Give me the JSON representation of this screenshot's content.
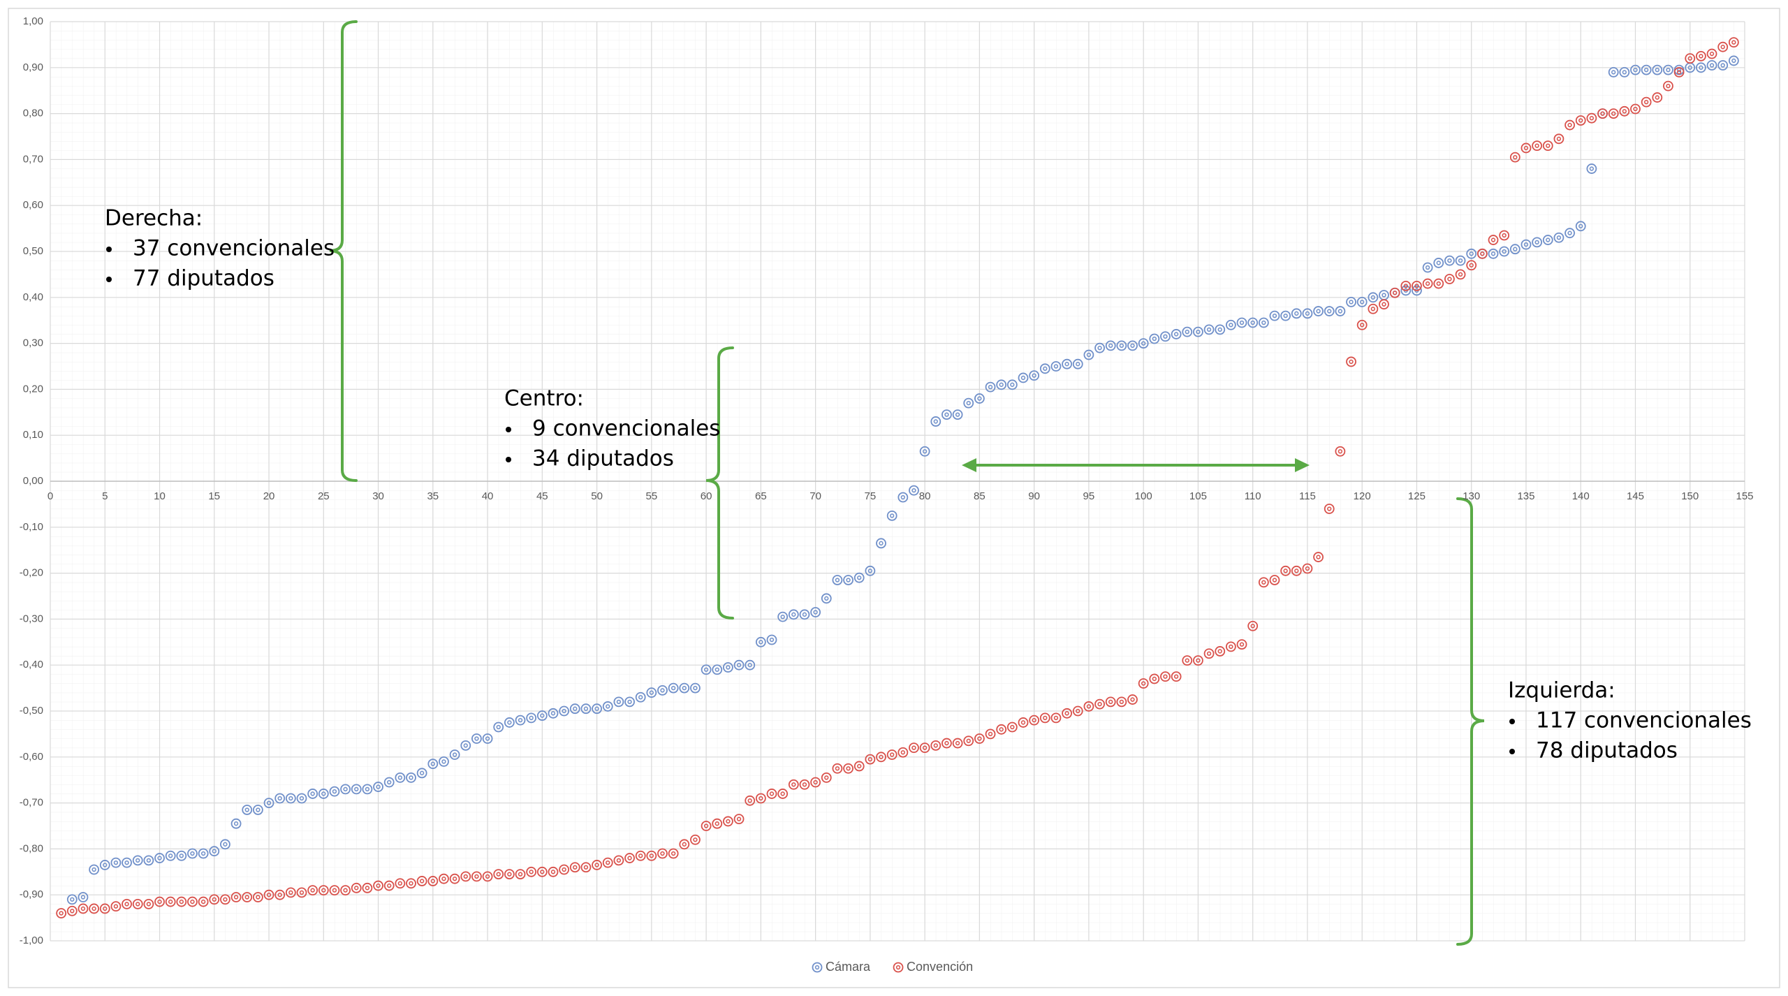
{
  "chart_data": {
    "type": "scatter",
    "xlim": [
      0,
      155
    ],
    "ylim": [
      -1,
      1
    ],
    "xticks": [
      0,
      5,
      10,
      15,
      20,
      25,
      30,
      35,
      40,
      45,
      50,
      55,
      60,
      65,
      70,
      75,
      80,
      85,
      90,
      95,
      100,
      105,
      110,
      115,
      120,
      125,
      130,
      135,
      140,
      145,
      150,
      155
    ],
    "yticks": [
      {
        "value": 1,
        "label": "1,00"
      },
      {
        "value": 0.9,
        "label": "0,90"
      },
      {
        "value": 0.8,
        "label": "0,80"
      },
      {
        "value": 0.7,
        "label": "0,70"
      },
      {
        "value": 0.6,
        "label": "0,60"
      },
      {
        "value": 0.5,
        "label": "0,50"
      },
      {
        "value": 0.4,
        "label": "0,40"
      },
      {
        "value": 0.3,
        "label": "0,30"
      },
      {
        "value": 0.2,
        "label": "0,20"
      },
      {
        "value": 0.1,
        "label": "0,10"
      },
      {
        "value": 0,
        "label": "0,00"
      },
      {
        "value": -0.1,
        "label": "-0,10"
      },
      {
        "value": -0.2,
        "label": "-0,20"
      },
      {
        "value": -0.3,
        "label": "-0,30"
      },
      {
        "value": -0.4,
        "label": "-0,40"
      },
      {
        "value": -0.5,
        "label": "-0,50"
      },
      {
        "value": -0.6,
        "label": "-0,60"
      },
      {
        "value": -0.7,
        "label": "-0,70"
      },
      {
        "value": -0.8,
        "label": "-0,80"
      },
      {
        "value": -0.9,
        "label": "-0,90"
      },
      {
        "value": -1,
        "label": "-1,00"
      }
    ],
    "grid": true,
    "minor_grid": true,
    "legend": "bottom",
    "series": [
      {
        "name": "Cámara",
        "color": "#6f8fc9",
        "x": [
          2,
          3,
          4,
          5,
          6,
          7,
          8,
          9,
          10,
          11,
          12,
          13,
          14,
          15,
          16,
          17,
          18,
          19,
          20,
          21,
          22,
          23,
          24,
          25,
          26,
          27,
          28,
          29,
          30,
          31,
          32,
          33,
          34,
          35,
          36,
          37,
          38,
          39,
          40,
          41,
          42,
          43,
          44,
          45,
          46,
          47,
          48,
          49,
          50,
          51,
          52,
          53,
          54,
          55,
          56,
          57,
          58,
          59,
          60,
          61,
          62,
          63,
          64,
          65,
          66,
          67,
          68,
          69,
          70,
          71,
          72,
          73,
          74,
          75,
          76,
          77,
          78,
          79,
          80,
          81,
          82,
          83,
          84,
          85,
          86,
          87,
          88,
          89,
          90,
          91,
          92,
          93,
          94,
          95,
          96,
          97,
          98,
          99,
          100,
          101,
          102,
          103,
          104,
          105,
          106,
          107,
          108,
          109,
          110,
          111,
          112,
          113,
          114,
          115,
          116,
          117,
          118,
          119,
          120,
          121,
          122,
          123,
          124,
          125,
          126,
          127,
          128,
          129,
          130,
          131,
          132,
          133,
          134,
          135,
          136,
          137,
          138,
          139,
          140,
          141,
          142,
          143,
          144,
          145,
          146,
          147,
          148,
          149,
          150,
          151,
          152,
          153,
          154
        ],
        "values": [
          -0.91,
          -0.905,
          -0.845,
          -0.835,
          -0.83,
          -0.83,
          -0.825,
          -0.825,
          -0.82,
          -0.815,
          -0.815,
          -0.81,
          -0.81,
          -0.805,
          -0.79,
          -0.745,
          -0.715,
          -0.715,
          -0.7,
          -0.69,
          -0.69,
          -0.69,
          -0.68,
          -0.68,
          -0.675,
          -0.67,
          -0.67,
          -0.67,
          -0.665,
          -0.655,
          -0.645,
          -0.645,
          -0.635,
          -0.615,
          -0.61,
          -0.595,
          -0.575,
          -0.56,
          -0.56,
          -0.535,
          -0.525,
          -0.52,
          -0.515,
          -0.51,
          -0.505,
          -0.5,
          -0.495,
          -0.495,
          -0.495,
          -0.49,
          -0.48,
          -0.48,
          -0.47,
          -0.46,
          -0.455,
          -0.45,
          -0.45,
          -0.45,
          -0.41,
          -0.41,
          -0.405,
          -0.4,
          -0.4,
          -0.35,
          -0.345,
          -0.295,
          -0.29,
          -0.29,
          -0.285,
          -0.255,
          -0.215,
          -0.215,
          -0.21,
          -0.195,
          -0.135,
          -0.075,
          -0.035,
          -0.02,
          0.065,
          0.13,
          0.145,
          0.145,
          0.17,
          0.18,
          0.205,
          0.21,
          0.21,
          0.225,
          0.23,
          0.245,
          0.25,
          0.255,
          0.255,
          0.275,
          0.29,
          0.295,
          0.295,
          0.295,
          0.3,
          0.31,
          0.315,
          0.32,
          0.325,
          0.325,
          0.33,
          0.33,
          0.34,
          0.345,
          0.345,
          0.345,
          0.36,
          0.36,
          0.365,
          0.365,
          0.37,
          0.37,
          0.37,
          0.39,
          0.39,
          0.4,
          0.405,
          0.41,
          0.415,
          0.415,
          0.465,
          0.475,
          0.48,
          0.48,
          0.495,
          0.495,
          0.495,
          0.5,
          0.505,
          0.515,
          0.52,
          0.525,
          0.53,
          0.54,
          0.555,
          0.68,
          0.8,
          0.89,
          0.89,
          0.895,
          0.895,
          0.895,
          0.895,
          0.895,
          0.9,
          0.9,
          0.905,
          0.905,
          0.915
        ]
      },
      {
        "name": "Convención",
        "color": "#d9504a",
        "x": [
          1,
          2,
          3,
          4,
          5,
          6,
          7,
          8,
          9,
          10,
          11,
          12,
          13,
          14,
          15,
          16,
          17,
          18,
          19,
          20,
          21,
          22,
          23,
          24,
          25,
          26,
          27,
          28,
          29,
          30,
          31,
          32,
          33,
          34,
          35,
          36,
          37,
          38,
          39,
          40,
          41,
          42,
          43,
          44,
          45,
          46,
          47,
          48,
          49,
          50,
          51,
          52,
          53,
          54,
          55,
          56,
          57,
          58,
          59,
          60,
          61,
          62,
          63,
          64,
          65,
          66,
          67,
          68,
          69,
          70,
          71,
          72,
          73,
          74,
          75,
          76,
          77,
          78,
          79,
          80,
          81,
          82,
          83,
          84,
          85,
          86,
          87,
          88,
          89,
          90,
          91,
          92,
          93,
          94,
          95,
          96,
          97,
          98,
          99,
          100,
          101,
          102,
          103,
          104,
          105,
          106,
          107,
          108,
          109,
          110,
          111,
          112,
          113,
          114,
          115,
          116,
          117,
          118,
          119,
          120,
          121,
          122,
          123,
          124,
          125,
          126,
          127,
          128,
          129,
          130,
          131,
          132,
          133,
          134,
          135,
          136,
          137,
          138,
          139,
          140,
          141,
          142,
          143,
          144,
          145,
          146,
          147,
          148,
          149,
          150,
          151,
          152,
          153,
          154
        ],
        "values": [
          -0.94,
          -0.935,
          -0.93,
          -0.93,
          -0.93,
          -0.925,
          -0.92,
          -0.92,
          -0.92,
          -0.915,
          -0.915,
          -0.915,
          -0.915,
          -0.915,
          -0.91,
          -0.91,
          -0.905,
          -0.905,
          -0.905,
          -0.9,
          -0.9,
          -0.895,
          -0.895,
          -0.89,
          -0.89,
          -0.89,
          -0.89,
          -0.885,
          -0.885,
          -0.88,
          -0.88,
          -0.875,
          -0.875,
          -0.87,
          -0.87,
          -0.865,
          -0.865,
          -0.86,
          -0.86,
          -0.86,
          -0.855,
          -0.855,
          -0.855,
          -0.85,
          -0.85,
          -0.85,
          -0.845,
          -0.84,
          -0.84,
          -0.835,
          -0.83,
          -0.825,
          -0.82,
          -0.815,
          -0.815,
          -0.81,
          -0.81,
          -0.79,
          -0.78,
          -0.75,
          -0.745,
          -0.74,
          -0.735,
          -0.695,
          -0.69,
          -0.68,
          -0.68,
          -0.66,
          -0.66,
          -0.655,
          -0.645,
          -0.625,
          -0.625,
          -0.62,
          -0.605,
          -0.6,
          -0.595,
          -0.59,
          -0.58,
          -0.58,
          -0.575,
          -0.57,
          -0.57,
          -0.565,
          -0.56,
          -0.55,
          -0.54,
          -0.535,
          -0.525,
          -0.52,
          -0.515,
          -0.515,
          -0.505,
          -0.5,
          -0.49,
          -0.485,
          -0.48,
          -0.48,
          -0.475,
          -0.44,
          -0.43,
          -0.425,
          -0.425,
          -0.39,
          -0.39,
          -0.375,
          -0.37,
          -0.36,
          -0.355,
          -0.315,
          -0.22,
          -0.215,
          -0.195,
          -0.195,
          -0.19,
          -0.165,
          -0.06,
          0.065,
          0.26,
          0.34,
          0.375,
          0.385,
          0.41,
          0.425,
          0.425,
          0.43,
          0.43,
          0.44,
          0.45,
          0.47,
          0.495,
          0.525,
          0.535,
          0.705,
          0.725,
          0.73,
          0.73,
          0.745,
          0.775,
          0.785,
          0.79,
          0.8,
          0.8,
          0.805,
          0.81,
          0.825,
          0.835,
          0.86,
          0.89,
          0.92,
          0.925,
          0.93,
          0.945,
          0.955
        ]
      }
    ],
    "annotations": [
      {
        "title": "Derecha:",
        "items": [
          "37 convencionales",
          "77 diputados"
        ]
      },
      {
        "title": "Centro:",
        "items": [
          "9 convencionales",
          "34 diputados"
        ]
      },
      {
        "title": "Izquierda:",
        "items": [
          "117 convencionales",
          "78 diputados"
        ]
      }
    ]
  }
}
